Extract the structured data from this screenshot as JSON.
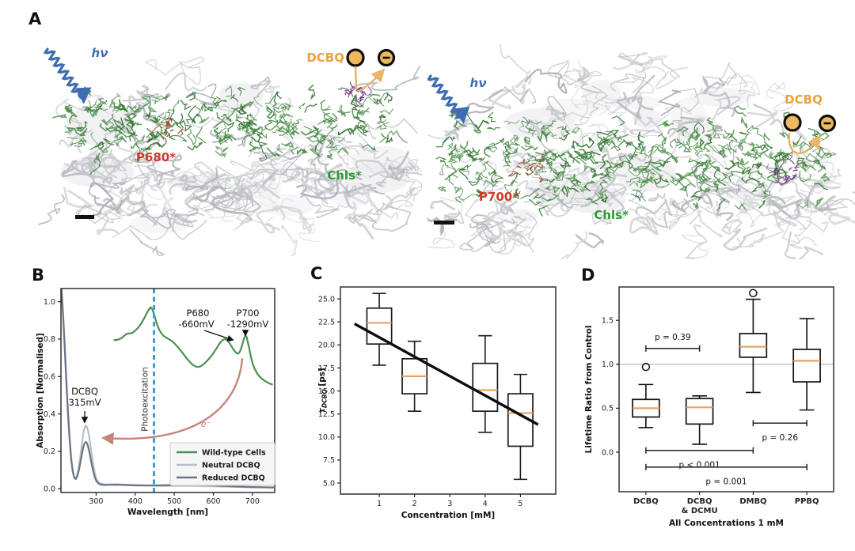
{
  "colors": {
    "green_curve": "#4f8f52",
    "neutral_gray": "#b9bfc6",
    "reduced_gray": "#6b7684",
    "cyan_dash": "#2aa7d4",
    "salmon": "#c8837a",
    "orange_text": "#e8a33c",
    "orange_fill": "#edb85e",
    "orange_arrow": "#e9b66b",
    "red_text": "#cd3b2e",
    "blue": "#3d6cb3",
    "green_text": "#2e9b35",
    "median_orange": "#e2a368",
    "purple": "#7b2d8b",
    "red_cluster": "#8e4a2e",
    "axis": "#222222",
    "hline_gray": "#b0b0b0"
  },
  "panels": {
    "a": "A",
    "b": "B",
    "c": "C",
    "d": "D"
  },
  "panel_a": {
    "left": {
      "hv": "hν",
      "dcbq_label": "DCBQ",
      "minus": "-",
      "pigment_label": "P680*",
      "chls_label": "Chls*"
    },
    "right": {
      "hv": "hν",
      "dcbq_label": "DCBQ",
      "minus": "-",
      "pigment_label": "P700*",
      "chls_label": "Chls*"
    }
  },
  "chart_data": [
    {
      "id": "B",
      "type": "line",
      "xlabel": "Wavelength [nm]",
      "ylabel": "Absorption [Normalised]",
      "xlim": [
        210,
        757
      ],
      "ylim": [
        -0.02,
        1.07
      ],
      "xticks": [
        300,
        400,
        500,
        600,
        700
      ],
      "yticks": [
        0.0,
        0.2,
        0.4,
        0.6,
        0.8,
        1.0
      ],
      "ytick_labels": [
        "0.0",
        "0.2",
        "0.4",
        "0.6",
        "0.8",
        "1.0"
      ],
      "photoexcitation_x": 448,
      "photoexcitation_label": "Photoexcitation",
      "annotations": {
        "p680": "P680",
        "p680_mv": "-660mV",
        "p700": "P700",
        "p700_mv": "-1290mV",
        "dcbq": "DCBQ",
        "dcbq_mv": "315mV",
        "electron": "e⁻"
      },
      "legend": [
        {
          "label": "Wild-type Cells",
          "color_key": "green_curve"
        },
        {
          "label": "Neutral DCBQ",
          "color_key": "neutral_gray"
        },
        {
          "label": "Reduced DCBQ",
          "color_key": "reduced_gray"
        }
      ],
      "series": [
        {
          "name": "Wild-type Cells",
          "color_key": "green_curve",
          "points": [
            [
              345,
              0.795
            ],
            [
              352,
              0.795
            ],
            [
              360,
              0.8
            ],
            [
              368,
              0.81
            ],
            [
              376,
              0.825
            ],
            [
              382,
              0.83
            ],
            [
              388,
              0.83
            ],
            [
              394,
              0.835
            ],
            [
              400,
              0.845
            ],
            [
              408,
              0.862
            ],
            [
              416,
              0.885
            ],
            [
              424,
              0.915
            ],
            [
              430,
              0.94
            ],
            [
              436,
              0.962
            ],
            [
              440,
              0.97
            ],
            [
              444,
              0.958
            ],
            [
              448,
              0.935
            ],
            [
              452,
              0.905
            ],
            [
              456,
              0.878
            ],
            [
              461,
              0.853
            ],
            [
              466,
              0.833
            ],
            [
              472,
              0.818
            ],
            [
              479,
              0.808
            ],
            [
              486,
              0.8
            ],
            [
              492,
              0.792
            ],
            [
              500,
              0.778
            ],
            [
              508,
              0.76
            ],
            [
              516,
              0.74
            ],
            [
              524,
              0.718
            ],
            [
              532,
              0.697
            ],
            [
              540,
              0.677
            ],
            [
              548,
              0.661
            ],
            [
              556,
              0.652
            ],
            [
              562,
              0.651
            ],
            [
              568,
              0.655
            ],
            [
              576,
              0.667
            ],
            [
              584,
              0.684
            ],
            [
              592,
              0.703
            ],
            [
              600,
              0.724
            ],
            [
              608,
              0.75
            ],
            [
              616,
              0.777
            ],
            [
              622,
              0.792
            ],
            [
              628,
              0.8
            ],
            [
              634,
              0.797
            ],
            [
              640,
              0.783
            ],
            [
              646,
              0.763
            ],
            [
              652,
              0.742
            ],
            [
              658,
              0.727
            ],
            [
              663,
              0.722
            ],
            [
              668,
              0.733
            ],
            [
              673,
              0.762
            ],
            [
              678,
              0.8
            ],
            [
              682,
              0.82
            ],
            [
              685,
              0.812
            ],
            [
              688,
              0.787
            ],
            [
              692,
              0.748
            ],
            [
              696,
              0.706
            ],
            [
              700,
              0.672
            ],
            [
              706,
              0.64
            ],
            [
              712,
              0.617
            ],
            [
              720,
              0.596
            ],
            [
              728,
              0.582
            ],
            [
              736,
              0.571
            ],
            [
              744,
              0.562
            ],
            [
              752,
              0.556
            ]
          ]
        },
        {
          "name": "Neutral DCBQ",
          "color_key": "neutral_gray",
          "points": [
            [
              210,
              1.1
            ],
            [
              213,
              1.02
            ],
            [
              216,
              0.92
            ],
            [
              220,
              0.76
            ],
            [
              224,
              0.58
            ],
            [
              228,
              0.42
            ],
            [
              232,
              0.28
            ],
            [
              236,
              0.17
            ],
            [
              240,
              0.1
            ],
            [
              244,
              0.062
            ],
            [
              248,
              0.055
            ],
            [
              252,
              0.075
            ],
            [
              256,
              0.12
            ],
            [
              260,
              0.18
            ],
            [
              264,
              0.25
            ],
            [
              268,
              0.305
            ],
            [
              271,
              0.33
            ],
            [
              274,
              0.338
            ],
            [
              277,
              0.328
            ],
            [
              281,
              0.295
            ],
            [
              285,
              0.24
            ],
            [
              289,
              0.18
            ],
            [
              293,
              0.125
            ],
            [
              297,
              0.082
            ],
            [
              301,
              0.052
            ],
            [
              306,
              0.035
            ],
            [
              312,
              0.028
            ],
            [
              320,
              0.024
            ],
            [
              332,
              0.023
            ],
            [
              350,
              0.024
            ],
            [
              375,
              0.022
            ],
            [
              400,
              0.02
            ],
            [
              430,
              0.018
            ],
            [
              460,
              0.016
            ],
            [
              500,
              0.015
            ],
            [
              540,
              0.016
            ],
            [
              580,
              0.014
            ],
            [
              620,
              0.012
            ],
            [
              660,
              0.01
            ],
            [
              700,
              0.008
            ],
            [
              755,
              0.006
            ]
          ]
        },
        {
          "name": "Reduced DCBQ",
          "color_key": "reduced_gray",
          "points": [
            [
              210,
              1.1
            ],
            [
              213,
              1.01
            ],
            [
              216,
              0.9
            ],
            [
              220,
              0.74
            ],
            [
              224,
              0.56
            ],
            [
              228,
              0.4
            ],
            [
              232,
              0.265
            ],
            [
              236,
              0.16
            ],
            [
              240,
              0.095
            ],
            [
              244,
              0.058
            ],
            [
              248,
              0.052
            ],
            [
              252,
              0.068
            ],
            [
              256,
              0.1
            ],
            [
              260,
              0.145
            ],
            [
              264,
              0.19
            ],
            [
              268,
              0.228
            ],
            [
              271,
              0.245
            ],
            [
              274,
              0.25
            ],
            [
              277,
              0.242
            ],
            [
              281,
              0.215
            ],
            [
              285,
              0.172
            ],
            [
              289,
              0.128
            ],
            [
              293,
              0.09
            ],
            [
              297,
              0.06
            ],
            [
              301,
              0.04
            ],
            [
              306,
              0.028
            ],
            [
              312,
              0.022
            ],
            [
              320,
              0.02
            ],
            [
              332,
              0.021
            ],
            [
              350,
              0.022
            ],
            [
              375,
              0.02
            ],
            [
              400,
              0.018
            ],
            [
              430,
              0.017
            ],
            [
              460,
              0.018
            ],
            [
              500,
              0.02
            ],
            [
              540,
              0.022
            ],
            [
              580,
              0.02
            ],
            [
              620,
              0.016
            ],
            [
              660,
              0.012
            ],
            [
              700,
              0.009
            ],
            [
              755,
              0.007
            ]
          ]
        }
      ]
    },
    {
      "id": "C",
      "type": "box",
      "xlabel": "Concentration [mM]",
      "ylabel_tau": "τ",
      "ylabel_sub": "DCBQ",
      "ylabel_unit": " [ps]",
      "xlim": [
        -0.1,
        6.0
      ],
      "ylim": [
        3.8,
        26.3
      ],
      "xticks": [
        1,
        2,
        3,
        4,
        5
      ],
      "yticks": [
        5.0,
        7.5,
        10.0,
        12.5,
        15.0,
        17.5,
        20.0,
        22.5,
        25.0
      ],
      "box_width": 0.7,
      "boxes": [
        {
          "x": 1,
          "lo": 17.8,
          "q1": 20.1,
          "med": 22.4,
          "q3": 24.0,
          "hi": 25.6
        },
        {
          "x": 2,
          "lo": 12.8,
          "q1": 14.7,
          "med": 16.6,
          "q3": 18.5,
          "hi": 20.4
        },
        {
          "x": 4,
          "lo": 10.5,
          "q1": 12.8,
          "med": 15.1,
          "q3": 18.0,
          "hi": 21.0
        },
        {
          "x": 5,
          "lo": 5.4,
          "q1": 9.0,
          "med": 12.6,
          "q3": 14.7,
          "hi": 16.8
        }
      ],
      "trend": {
        "x1": 0.3,
        "y1": 22.3,
        "x2": 5.5,
        "y2": 11.35
      }
    },
    {
      "id": "D",
      "type": "box",
      "xlabel": "All Concentrations 1 mM",
      "ylabel": "Lifetime Ratio from Control",
      "xlim": [
        0.5,
        4.5
      ],
      "ylim": [
        -0.45,
        1.88
      ],
      "yticks": [
        0.0,
        0.5,
        1.0,
        1.5
      ],
      "ytick_labels": [
        "0.0",
        "0.5",
        "1.0",
        "1.5"
      ],
      "categories": [
        {
          "lines": [
            "DCBQ"
          ]
        },
        {
          "lines": [
            "DCBQ",
            "& DCMU"
          ]
        },
        {
          "lines": [
            "DMBQ"
          ]
        },
        {
          "lines": [
            "PPBQ"
          ]
        }
      ],
      "ref_line": 1.0,
      "box_width": 0.5,
      "boxes": [
        {
          "x": 1,
          "lo": 0.28,
          "q1": 0.4,
          "med": 0.5,
          "q3": 0.6,
          "hi": 0.77,
          "outliers": [
            0.97
          ]
        },
        {
          "x": 2,
          "lo": 0.09,
          "q1": 0.32,
          "med": 0.51,
          "q3": 0.61,
          "hi": 0.64,
          "outliers": []
        },
        {
          "x": 3,
          "lo": 0.68,
          "q1": 1.08,
          "med": 1.2,
          "q3": 1.35,
          "hi": 1.74,
          "outliers": [
            1.81
          ]
        },
        {
          "x": 4,
          "lo": 0.48,
          "q1": 0.8,
          "med": 1.04,
          "q3": 1.17,
          "hi": 1.52,
          "outliers": []
        }
      ],
      "sig_bars": [
        {
          "from": 1,
          "to": 2,
          "y": 1.18,
          "label": "p = 0.39",
          "label_y": 1.31
        },
        {
          "from": 3,
          "to": 4,
          "y": 0.33,
          "label": "p = 0.26",
          "label_y": 0.165
        },
        {
          "from": 1,
          "to": 3,
          "y": 0.02,
          "label": "p < 0.001",
          "label_y": -0.145
        },
        {
          "from": 1,
          "to": 4,
          "y": -0.17,
          "label": "p = 0.001",
          "label_y": -0.335
        }
      ]
    }
  ]
}
